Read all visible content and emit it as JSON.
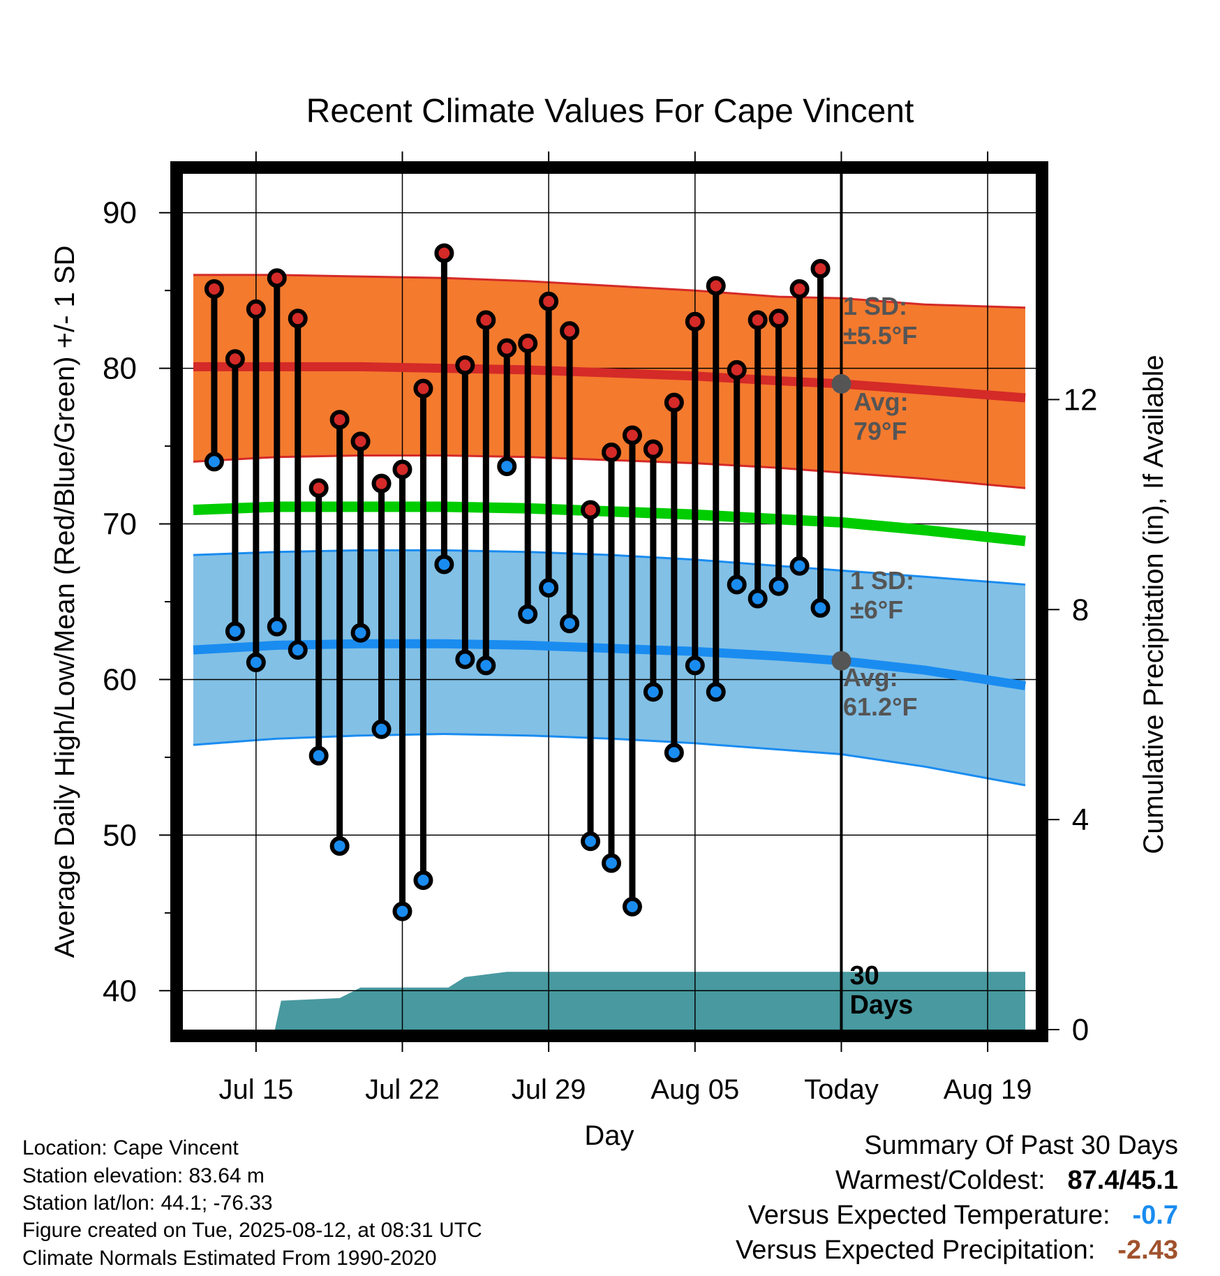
{
  "title": "Recent Climate Values For Cape Vincent",
  "chart_data": {
    "type": "line",
    "title": "Recent Climate Values For Cape Vincent",
    "xlabel": "Day",
    "ylabel": "Average Daily High/Low/Mean (Red/Blue/Green) +/- 1 SD",
    "y2label": "Cumulative Precipitation (in), If Available",
    "ylim": [
      37.5,
      92.5
    ],
    "y_ticks": [
      40,
      50,
      60,
      70,
      80,
      90
    ],
    "y2lim": [
      0,
      16.3
    ],
    "y2_ticks": [
      0,
      4,
      8,
      12
    ],
    "x_ticks": [
      {
        "day": 3,
        "label": "Jul 15"
      },
      {
        "day": 10,
        "label": "Jul 22"
      },
      {
        "day": 17,
        "label": "Jul 29"
      },
      {
        "day": 24,
        "label": "Aug 05"
      },
      {
        "day": 31,
        "label": "Today"
      },
      {
        "day": 38,
        "label": "Aug 19"
      }
    ],
    "xlim": [
      -0.5,
      40.3
    ],
    "today_day": 31,
    "today_label_days": [
      "30",
      "Days"
    ],
    "grid": true,
    "obs_days": [
      1,
      2,
      3,
      4,
      5,
      6,
      7,
      8,
      9,
      10,
      11,
      12,
      13,
      14,
      15,
      16,
      17,
      18,
      19,
      20,
      21,
      22,
      23,
      24,
      25,
      26,
      27,
      28,
      29,
      30
    ],
    "obs_high": [
      85.1,
      80.6,
      83.8,
      85.8,
      83.2,
      72.3,
      76.7,
      75.3,
      72.6,
      73.5,
      78.7,
      87.4,
      80.2,
      83.1,
      81.3,
      81.6,
      84.3,
      82.4,
      70.9,
      74.6,
      75.7,
      74.8,
      77.8,
      83.0,
      85.3,
      79.9,
      83.1,
      83.2,
      85.1,
      86.4
    ],
    "obs_low": [
      74.0,
      63.1,
      61.1,
      63.4,
      61.9,
      55.1,
      49.3,
      63.0,
      56.8,
      45.1,
      47.1,
      67.4,
      61.3,
      60.9,
      73.7,
      64.2,
      65.9,
      63.6,
      49.6,
      48.2,
      45.4,
      59.2,
      55.3,
      60.9,
      59.2,
      66.1,
      65.2,
      66.0,
      67.3,
      64.6
    ],
    "normal_days": [
      0,
      4,
      8,
      12,
      16,
      20,
      24,
      28,
      31,
      35,
      39.8
    ],
    "normal_high": [
      80.1,
      80.1,
      80.1,
      80.0,
      79.9,
      79.7,
      79.5,
      79.2,
      79.0,
      78.6,
      78.1
    ],
    "high_sd_upper": [
      86.0,
      86.0,
      85.9,
      85.8,
      85.6,
      85.3,
      85.0,
      84.6,
      84.5,
      84.1,
      83.9
    ],
    "high_sd_lower": [
      74.0,
      74.3,
      74.4,
      74.4,
      74.3,
      74.1,
      73.9,
      73.6,
      73.3,
      72.9,
      72.3
    ],
    "normal_mean": [
      70.9,
      71.1,
      71.1,
      71.1,
      71.0,
      70.8,
      70.6,
      70.3,
      70.1,
      69.6,
      68.9
    ],
    "normal_low": [
      61.9,
      62.2,
      62.3,
      62.3,
      62.2,
      62.0,
      61.8,
      61.5,
      61.2,
      60.6,
      59.6
    ],
    "low_sd_upper": [
      68.0,
      68.2,
      68.3,
      68.3,
      68.2,
      68.0,
      67.7,
      67.3,
      67.0,
      66.6,
      66.1
    ],
    "low_sd_lower": [
      55.8,
      56.2,
      56.4,
      56.5,
      56.4,
      56.2,
      55.9,
      55.5,
      55.2,
      54.4,
      53.2
    ],
    "precip_days": [
      0,
      3,
      3.9,
      4.2,
      7,
      8,
      11,
      12.2,
      13,
      15,
      18,
      22,
      26,
      30,
      31,
      39.8
    ],
    "precip_cum": [
      0,
      0,
      0,
      0.55,
      0.6,
      0.8,
      0.8,
      0.8,
      1.0,
      1.1,
      1.1,
      1.1,
      1.1,
      1.1,
      1.1,
      1.1
    ],
    "annotations": {
      "high_sd": [
        "1 SD:",
        "±5.5°F"
      ],
      "high_avg": [
        "Avg:",
        "79°F"
      ],
      "low_sd": [
        "1 SD:",
        "±6°F"
      ],
      "low_avg": [
        "Avg:",
        "61.2°F"
      ]
    },
    "colors": {
      "high_band": "#f47a2e",
      "high_line": "#d42a28",
      "high_point": "#d42a28",
      "mean_line": "#00cc00",
      "low_band": "#82c0e6",
      "low_line": "#1a8cf0",
      "low_point": "#1a8cf0",
      "precip": "#4899a0",
      "annotation": "#555555",
      "today_marker": "#555555"
    }
  },
  "footer": {
    "location": "Location: Cape Vincent",
    "elevation": "Station elevation: 83.64 m",
    "latlon": "Station lat/lon: 44.1; -76.33",
    "created": "Figure created on Tue, 2025-08-12, at 08:31 UTC",
    "normals": "Climate Normals Estimated From 1990-2020"
  },
  "summary": {
    "heading": "Summary Of Past 30 Days",
    "warm_cold_label": "Warmest/Coldest:",
    "warm_cold_value": "87.4/45.1",
    "temp_label": "Versus Expected Temperature:",
    "temp_value": "-0.7",
    "temp_color": "#1a8cf0",
    "precip_label": "Versus Expected Precipitation:",
    "precip_value": "-2.43",
    "precip_color": "#a0522d"
  }
}
